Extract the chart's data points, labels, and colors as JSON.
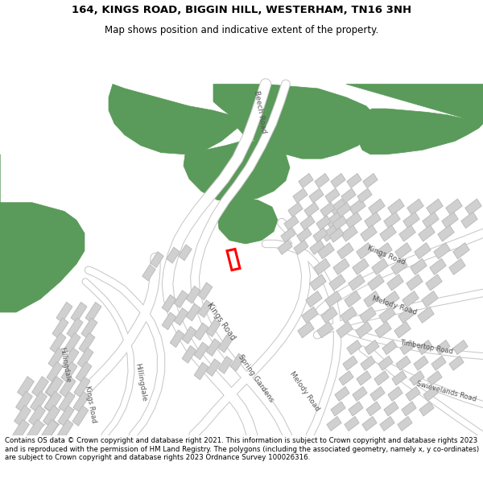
{
  "title_line1": "164, KINGS ROAD, BIGGIN HILL, WESTERHAM, TN16 3NH",
  "title_line2": "Map shows position and indicative extent of the property.",
  "footer_text": "Contains OS data © Crown copyright and database right 2021. This information is subject to Crown copyright and database rights 2023 and is reproduced with the permission of HM Land Registry. The polygons (including the associated geometry, namely x, y co-ordinates) are subject to Crown copyright and database rights 2023 Ordnance Survey 100026316.",
  "background_color": "#ffffff",
  "map_background": "#f0f0f0",
  "green_color": "#5a9a5a",
  "road_color": "#ffffff",
  "road_outline_color": "#c8c8c8",
  "building_color": "#d0d0d0",
  "building_outline": "#b8b8b8",
  "highlight_color": "#ff0000",
  "label_color": "#555555"
}
